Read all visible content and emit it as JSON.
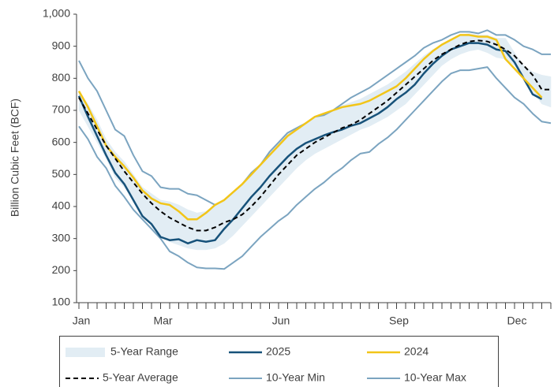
{
  "chart_data": {
    "type": "line",
    "y_label": "Billion Cubic Feet (BCF)",
    "categories": [
      "Jan",
      null,
      null,
      null,
      null,
      null,
      null,
      null,
      null,
      "Mar",
      null,
      null,
      null,
      null,
      null,
      null,
      null,
      null,
      null,
      null,
      null,
      null,
      "Jun",
      null,
      null,
      null,
      null,
      null,
      null,
      null,
      null,
      null,
      null,
      null,
      null,
      "Sep",
      null,
      null,
      null,
      null,
      null,
      null,
      null,
      null,
      null,
      null,
      null,
      null,
      "Dec",
      null,
      null,
      null,
      null
    ],
    "ylim": [
      100,
      1000
    ],
    "yticks": [
      100,
      200,
      300,
      400,
      500,
      600,
      700,
      800,
      900,
      {
        "value": 1000,
        "label": "1,000"
      }
    ],
    "range": {
      "name": "5-Year Range",
      "color": "#e2edf4",
      "upper": [
        760,
        720,
        670,
        610,
        570,
        540,
        500,
        460,
        440,
        420,
        415,
        405,
        390,
        380,
        385,
        405,
        420,
        445,
        470,
        505,
        530,
        570,
        600,
        630,
        645,
        660,
        680,
        685,
        700,
        715,
        725,
        735,
        750,
        765,
        780,
        800,
        820,
        845,
        870,
        890,
        905,
        920,
        935,
        940,
        935,
        935,
        925,
        925,
        880,
        840,
        820,
        810,
        805
      ],
      "lower": [
        700,
        650,
        600,
        550,
        490,
        460,
        420,
        370,
        345,
        310,
        290,
        280,
        270,
        265,
        265,
        270,
        285,
        310,
        340,
        370,
        400,
        430,
        460,
        490,
        520,
        545,
        565,
        580,
        595,
        610,
        625,
        640,
        650,
        665,
        680,
        700,
        720,
        750,
        780,
        810,
        840,
        860,
        875,
        885,
        890,
        880,
        865,
        860,
        840,
        800,
        760,
        720,
        710
      ]
    },
    "series": [
      {
        "name": "2025",
        "color": "#17527a",
        "width": 2.5,
        "values": [
          745,
          680,
          620,
          560,
          505,
          470,
          420,
          370,
          345,
          305,
          295,
          298,
          285,
          295,
          290,
          295,
          330,
          360,
          395,
          430,
          460,
          495,
          525,
          555,
          580,
          598,
          610,
          622,
          632,
          640,
          652,
          660,
          675,
          690,
          710,
          735,
          755,
          780,
          815,
          845,
          870,
          890,
          900,
          910,
          910,
          905,
          890,
          885,
          850,
          800,
          750,
          735,
          null
        ]
      },
      {
        "name": "2024",
        "color": "#f2c518",
        "width": 2.5,
        "values": [
          760,
          710,
          650,
          590,
          555,
          525,
          490,
          450,
          425,
          410,
          405,
          385,
          360,
          360,
          380,
          405,
          420,
          445,
          470,
          500,
          530,
          560,
          590,
          620,
          640,
          660,
          680,
          690,
          700,
          710,
          715,
          720,
          730,
          745,
          760,
          775,
          800,
          830,
          860,
          885,
          905,
          920,
          935,
          935,
          930,
          930,
          920,
          860,
          830,
          800,
          770,
          740,
          null
        ]
      },
      {
        "name": "5-Year Average",
        "color": "#000000",
        "width": 2,
        "dashed": true,
        "values": [
          740,
          690,
          640,
          590,
          550,
          510,
          475,
          440,
          410,
          385,
          365,
          350,
          335,
          325,
          325,
          335,
          350,
          360,
          375,
          400,
          430,
          465,
          500,
          530,
          560,
          580,
          600,
          615,
          630,
          645,
          655,
          670,
          690,
          710,
          730,
          755,
          780,
          805,
          830,
          855,
          875,
          890,
          905,
          915,
          918,
          915,
          905,
          890,
          870,
          840,
          810,
          765,
          765
        ]
      },
      {
        "name": "10-Year Min",
        "color": "#7ba4c0",
        "width": 2,
        "values": [
          650,
          610,
          555,
          520,
          465,
          430,
          390,
          360,
          330,
          300,
          260,
          245,
          225,
          210,
          207,
          207,
          205,
          225,
          245,
          275,
          305,
          330,
          355,
          375,
          405,
          430,
          455,
          475,
          500,
          520,
          545,
          565,
          570,
          595,
          615,
          640,
          670,
          700,
          730,
          760,
          790,
          815,
          825,
          825,
          830,
          835,
          800,
          770,
          740,
          720,
          690,
          665,
          660
        ]
      },
      {
        "name": "10-Year Max",
        "color": "#7ba4c0",
        "width": 2,
        "values": [
          855,
          800,
          760,
          700,
          640,
          620,
          560,
          510,
          495,
          460,
          455,
          455,
          440,
          435,
          420,
          405,
          420,
          445,
          470,
          505,
          530,
          570,
          600,
          630,
          645,
          660,
          680,
          685,
          700,
          720,
          740,
          755,
          770,
          790,
          810,
          830,
          850,
          870,
          895,
          910,
          920,
          935,
          945,
          945,
          940,
          950,
          935,
          935,
          920,
          900,
          890,
          875,
          875
        ]
      }
    ]
  }
}
